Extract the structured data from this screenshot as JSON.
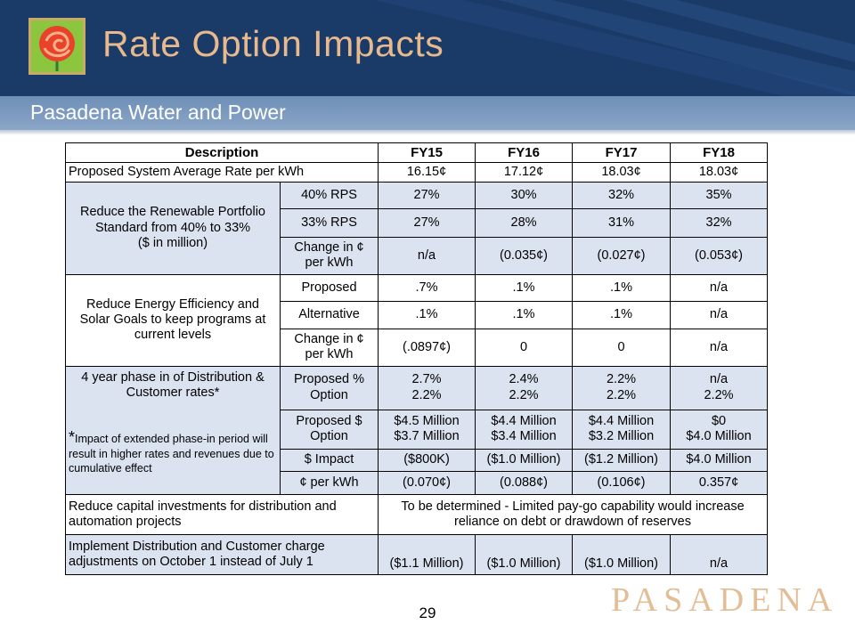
{
  "header": {
    "title": "Rate Option Impacts",
    "subtitle": "Pasadena Water and Power"
  },
  "table": {
    "headers": [
      "Description",
      "FY15",
      "FY16",
      "FY17",
      "FY18"
    ],
    "system_rate": {
      "label": "Proposed System Average Rate per kWh",
      "values": [
        "16.15¢",
        "17.12¢",
        "18.03¢",
        "18.03¢"
      ]
    },
    "rps": {
      "description": [
        "Reduce the Renewable Portfolio",
        "Standard from 40% to 33%",
        "($ in million)"
      ],
      "rows": [
        {
          "label": "40% RPS",
          "values": [
            "27%",
            "30%",
            "32%",
            "35%"
          ]
        },
        {
          "label": "33% RPS",
          "values": [
            "27%",
            "28%",
            "31%",
            "32%"
          ]
        },
        {
          "label": [
            "Change in ¢",
            "per kWh"
          ],
          "values": [
            "n/a",
            "(0.035¢)",
            "(0.027¢)",
            "(0.053¢)"
          ]
        }
      ]
    },
    "efficiency": {
      "description": [
        "Reduce Energy Efficiency and",
        "Solar Goals to keep programs at",
        "current levels"
      ],
      "rows": [
        {
          "label": "Proposed",
          "values": [
            ".7%",
            ".1%",
            ".1%",
            "n/a"
          ]
        },
        {
          "label": "Alternative",
          "values": [
            ".1%",
            ".1%",
            ".1%",
            "n/a"
          ]
        },
        {
          "label": [
            "Change in ¢",
            "per kWh"
          ],
          "values": [
            "(.0897¢)",
            "0",
            "0",
            "n/a"
          ]
        }
      ]
    },
    "phase_in": {
      "description": [
        "4 year phase in of Distribution &",
        "Customer rates*"
      ],
      "note_star": "*",
      "note": "Impact of extended phase-in period will result in higher rates and revenues due to cumulative effect",
      "rows": [
        {
          "label": [
            "Proposed %",
            "Option"
          ],
          "values": [
            [
              "2.7%",
              "2.2%"
            ],
            [
              "2.4%",
              "2.2%"
            ],
            [
              "2.2%",
              "2.2%"
            ],
            [
              "n/a",
              "2.2%"
            ]
          ]
        },
        {
          "label": [
            "Proposed $",
            "Option"
          ],
          "values": [
            [
              "$4.5 Million",
              "$3.7 Million"
            ],
            [
              "$4.4 Million",
              "$3.4 Million"
            ],
            [
              "$4.4 Million",
              "$3.2 Million"
            ],
            [
              "$0",
              "$4.0 Million"
            ]
          ]
        },
        {
          "label": "$ Impact",
          "values": [
            "($800K)",
            "($1.0 Million)",
            "($1.2 Million)",
            "$4.0 Million"
          ]
        },
        {
          "label": "¢ per kWh",
          "values": [
            "(0.070¢)",
            "(0.088¢)",
            "(0.106¢)",
            "0.357¢"
          ]
        }
      ]
    },
    "capital": {
      "label": [
        "Reduce capital  investments for distribution and",
        "automation projects"
      ],
      "text": [
        "To be determined - Limited pay-go capability would increase",
        "reliance on debt or drawdown of reserves"
      ]
    },
    "customer_charge": {
      "label": [
        "Implement Distribution and Customer charge",
        "adjustments on October 1 instead of July 1"
      ],
      "values": [
        "($1.1 Million)",
        "($1.0 Million)",
        "($1.0 Million)",
        "n/a"
      ]
    }
  },
  "footer": {
    "page_number": "29",
    "brand": "PASADENA"
  },
  "colors": {
    "header_bg": "#1a3a68",
    "title": "#e9b98e",
    "subbar": "#7b99c0",
    "row_blue": "#dbe3f1",
    "brand": "#e3bd95"
  }
}
